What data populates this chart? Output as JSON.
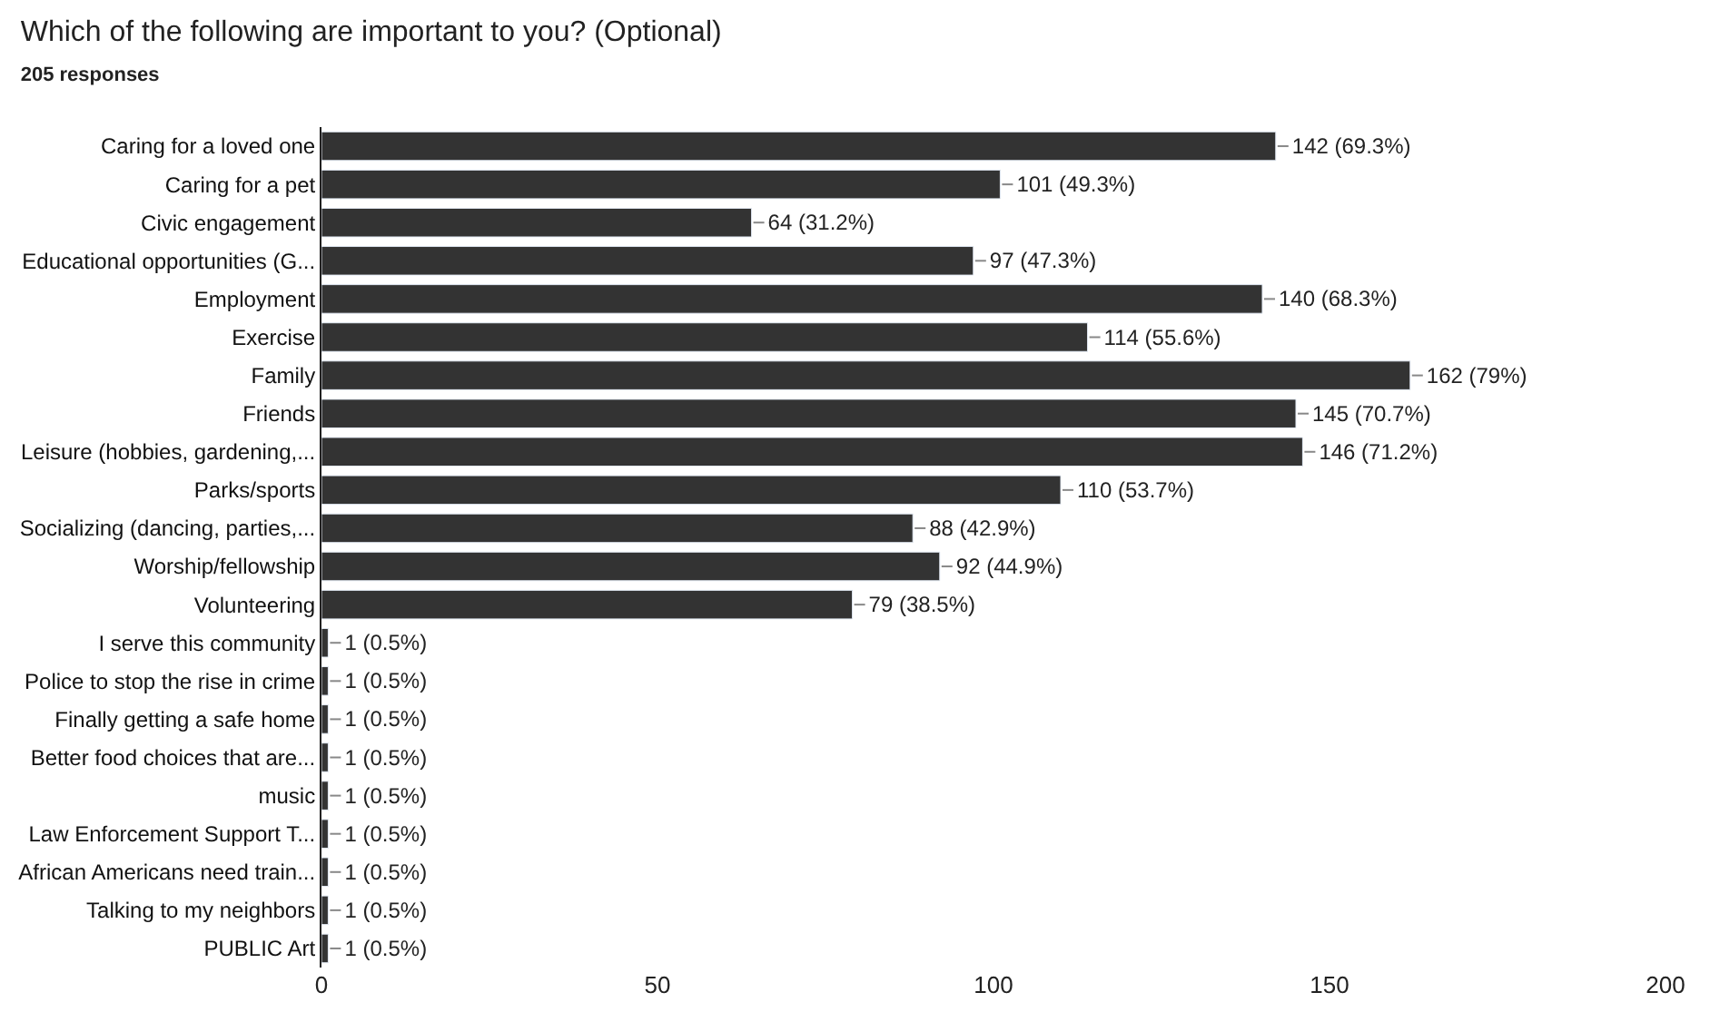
{
  "chart_data": {
    "type": "bar",
    "orientation": "horizontal",
    "title": "Which of the following are important to you? (Optional)",
    "subtitle": "205 responses",
    "categories": [
      "Caring for a loved one",
      "Caring for a pet",
      "Civic engagement",
      "Educational opportunities (G...",
      "Employment",
      "Exercise",
      "Family",
      "Friends",
      "Leisure (hobbies, gardening,...",
      "Parks/sports",
      "Socializing (dancing, parties,...",
      "Worship/fellowship",
      "Volunteering",
      "I serve this community",
      "Police to stop the rise in crime",
      "Finally getting a safe home",
      "Better food choices that are...",
      "music",
      "Law Enforcement Support T...",
      "African Americans need train...",
      "Talking to my neighbors",
      "PUBLIC Art"
    ],
    "values": [
      142,
      101,
      64,
      97,
      140,
      114,
      162,
      145,
      146,
      110,
      88,
      92,
      79,
      1,
      1,
      1,
      1,
      1,
      1,
      1,
      1,
      1
    ],
    "value_labels": [
      "142 (69.3%)",
      "101 (49.3%)",
      "64 (31.2%)",
      "97 (47.3%)",
      "140 (68.3%)",
      "114 (55.6%)",
      "162 (79%)",
      "145 (70.7%)",
      "146 (71.2%)",
      "110 (53.7%)",
      "88 (42.9%)",
      "92 (44.9%)",
      "79 (38.5%)",
      "1 (0.5%)",
      "1 (0.5%)",
      "1 (0.5%)",
      "1 (0.5%)",
      "1 (0.5%)",
      "1 (0.5%)",
      "1 (0.5%)",
      "1 (0.5%)",
      "1 (0.5%)"
    ],
    "color": "#333333",
    "xlim": [
      0,
      200
    ],
    "xticks": [
      0,
      50,
      100,
      150,
      200
    ]
  }
}
